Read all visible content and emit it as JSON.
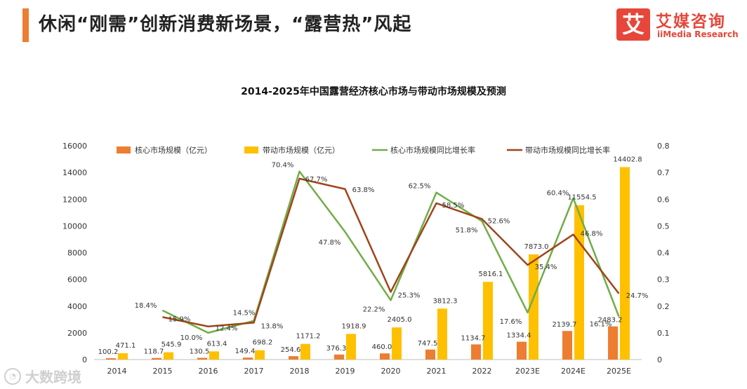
{
  "header": {
    "title": "休闲“刚需”创新消费新场景，“露营热”风起",
    "accent_color": "#ED7D31"
  },
  "logo": {
    "mark": "艾",
    "name_cn": "艾媒咨询",
    "name_en": "iiMedia Research",
    "color": "#E6473A"
  },
  "watermark": {
    "text": "大数跨境",
    "icon": "chat-bubble-icon"
  },
  "chart_data": {
    "type": "bar",
    "title": "2014-2025年中国露营经济核心市场与带动市场规模及预测",
    "categories": [
      "2014",
      "2015",
      "2016",
      "2017",
      "2018",
      "2019",
      "2020",
      "2021",
      "2022",
      "2023E",
      "2024E",
      "2025E"
    ],
    "y_left": {
      "min": 0,
      "max": 16000,
      "ticks": [
        "0",
        "2000",
        "4000",
        "6000",
        "8000",
        "10000",
        "12000",
        "14000",
        "16000"
      ]
    },
    "y_right": {
      "min": 0,
      "max": 0.8,
      "ticks": [
        "0",
        "0.1",
        "0.2",
        "0.3",
        "0.4",
        "0.5",
        "0.6",
        "0.7",
        "0.8"
      ]
    },
    "legend": [
      "核心市场规模（亿元）",
      "带动市场规模（亿元）",
      "核心市场规模同比增长率",
      "带动市场规模同比增长率"
    ],
    "bar_series": [
      {
        "name": "核心市场规模（亿元）",
        "color": "#ED7D31",
        "values": [
          100.2,
          118.7,
          130.5,
          149.4,
          254.6,
          376.3,
          460.0,
          747.5,
          1134.7,
          1334.4,
          2139.7,
          2483.2
        ],
        "labels": [
          "100.2",
          "118.7",
          "130.5",
          "149.4",
          "254.6",
          "376.3",
          "460.0",
          "747.5",
          "1134.7",
          "1334.4",
          "2139.7",
          "2483.2"
        ]
      },
      {
        "name": "带动市场规模（亿元）",
        "color": "#FFC000",
        "values": [
          471.1,
          545.9,
          613.4,
          698.2,
          1171.2,
          1918.9,
          2405.0,
          3812.3,
          5816.1,
          7873.0,
          11554.5,
          14402.8
        ],
        "labels": [
          "471.1",
          "545.9",
          "613.4",
          "698.2",
          "1171.2",
          "1918.9",
          "2405.0",
          "3812.3",
          "5816.1",
          "7873.0",
          "11554.5",
          "14402.8"
        ]
      }
    ],
    "line_series": [
      {
        "name": "核心市场规模同比增长率",
        "color": "#70AD47",
        "values": [
          null,
          0.184,
          0.1,
          0.145,
          0.704,
          0.478,
          0.222,
          0.625,
          0.518,
          0.176,
          0.604,
          0.161
        ],
        "labels": [
          null,
          "18.4%",
          "10.0%",
          "14.5%",
          "70.4%",
          "47.8%",
          "22.2%",
          "62.5%",
          "51.8%",
          "17.6%",
          "60.4%",
          "16.1%"
        ]
      },
      {
        "name": "带动市场规模同比增长率",
        "color": "#A0441A",
        "values": [
          null,
          0.159,
          0.124,
          0.138,
          0.677,
          0.638,
          0.253,
          0.585,
          0.526,
          0.354,
          0.468,
          0.247
        ],
        "labels": [
          null,
          "15.9%",
          "12.4%",
          "13.8%",
          "67.7%",
          "63.8%",
          "25.3%",
          "58.5%",
          "52.6%",
          "35.4%",
          "46.8%",
          "24.7%"
        ]
      }
    ]
  }
}
